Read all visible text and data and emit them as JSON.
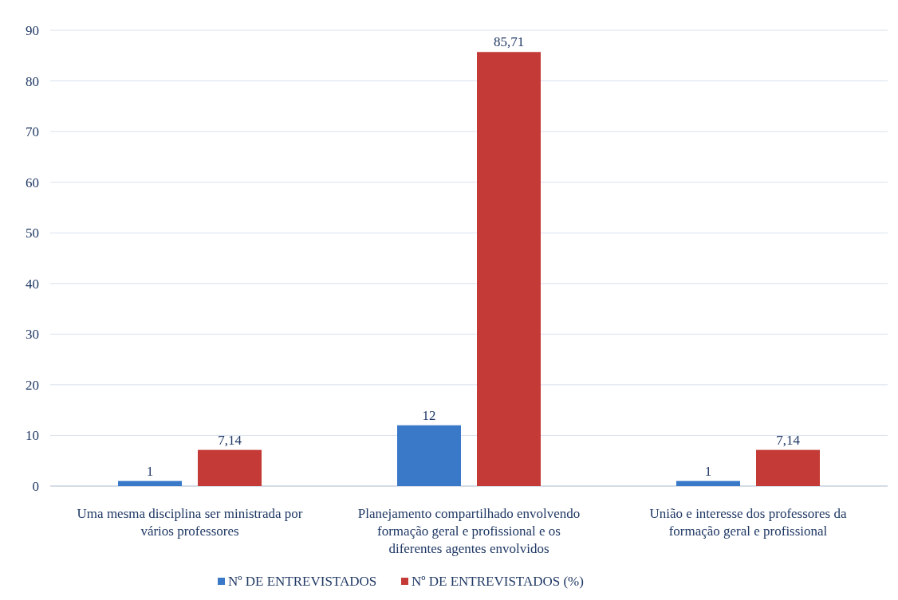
{
  "chart_data": {
    "type": "bar",
    "categories": [
      "Uma mesma disciplina ser ministrada por vários professores",
      "Planejamento compartilhado envolvendo formação geral e profissional e os diferentes agentes envolvidos",
      "União e interesse dos professores da formação geral e profissional"
    ],
    "series": [
      {
        "name": "Nº DE ENTREVISTADOS",
        "color": "#3a78c8",
        "values": [
          1,
          12,
          1
        ],
        "value_labels": [
          "1",
          "12",
          "1"
        ]
      },
      {
        "name": "Nº DE ENTREVISTADOS (%)",
        "color": "#c43a36",
        "values": [
          7.14,
          85.71,
          7.14
        ],
        "value_labels": [
          "7,14",
          "85,71",
          "7,14"
        ]
      }
    ],
    "ylim": [
      0,
      90
    ],
    "yticks": [
      0,
      10,
      20,
      30,
      40,
      50,
      60,
      70,
      80,
      90
    ],
    "grid": "y",
    "legend": "bottom"
  }
}
